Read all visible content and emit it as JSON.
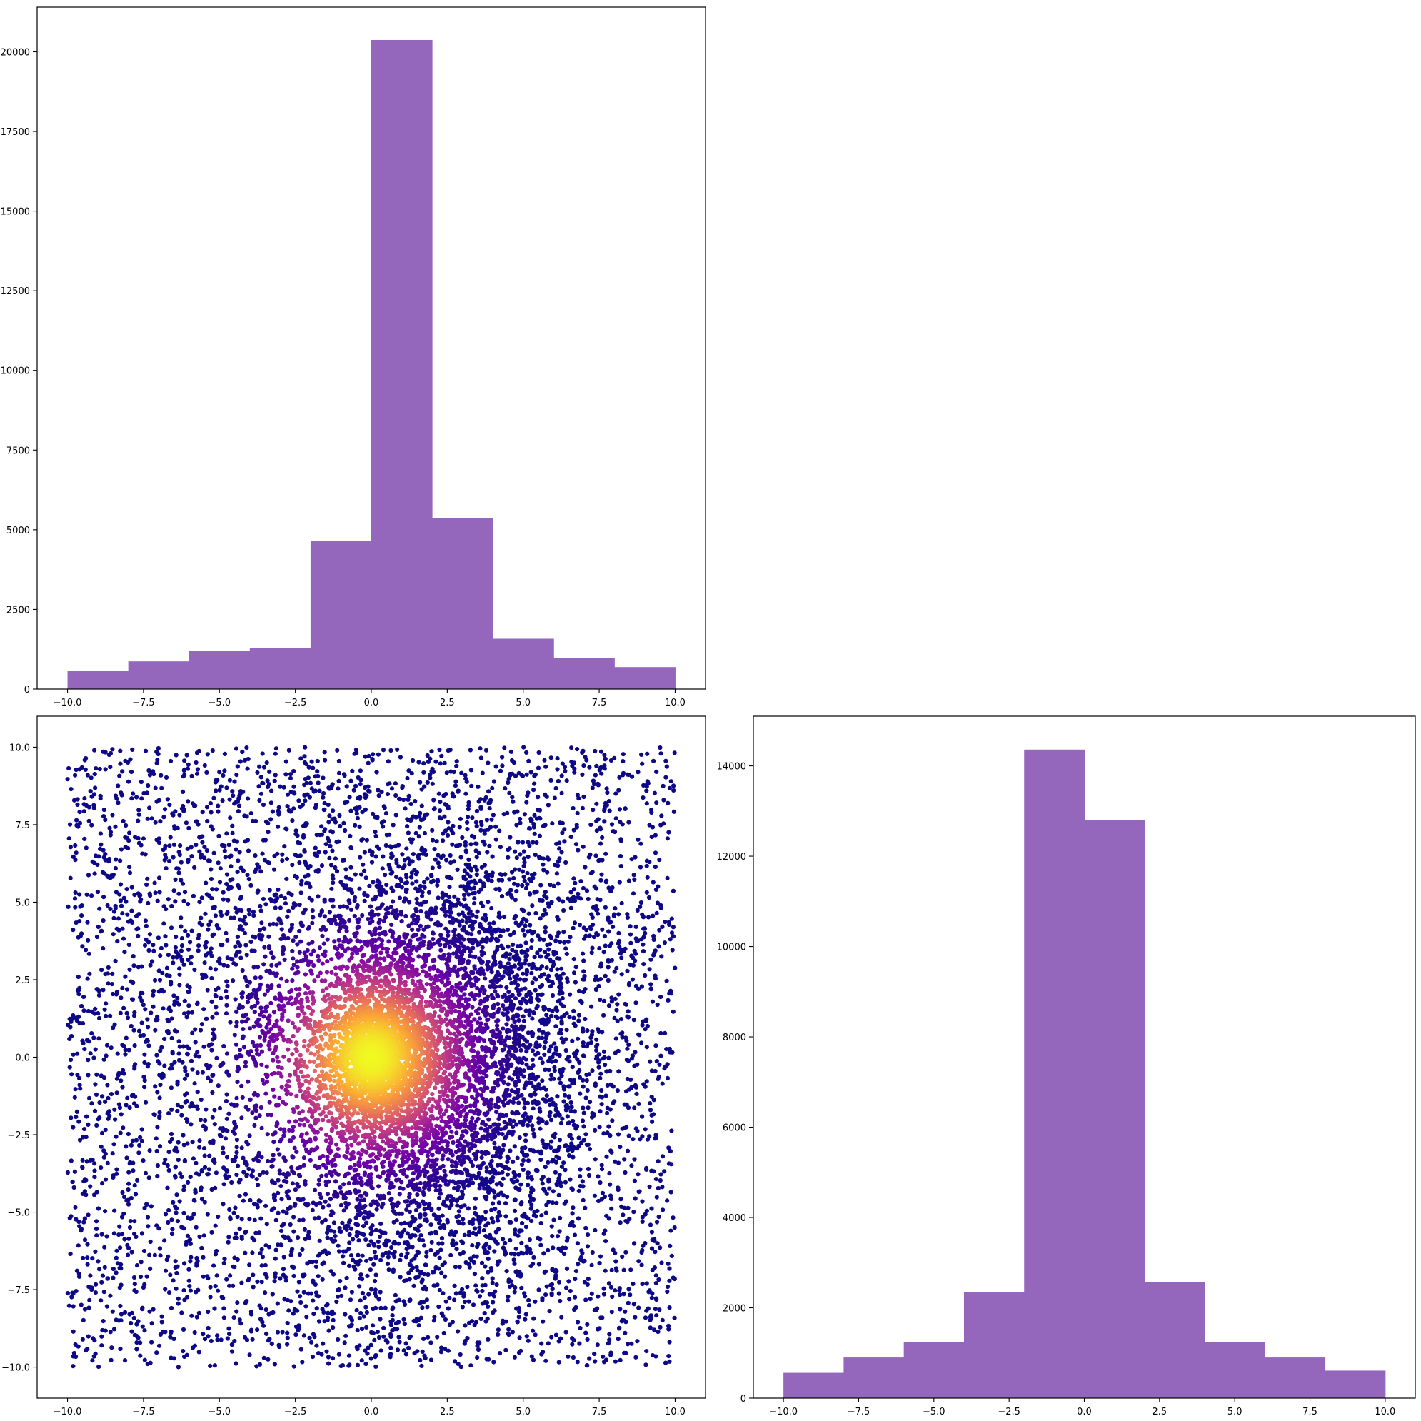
{
  "chart_data": [
    {
      "type": "bar",
      "panel": "top-left",
      "series_color": "#9467bd",
      "bin_edges": [
        -10,
        -8,
        -6,
        -4,
        -2,
        0,
        2,
        4,
        6,
        8,
        10
      ],
      "values": [
        560,
        870,
        1190,
        1290,
        4660,
        20370,
        5370,
        1580,
        970,
        690
      ],
      "xlim": [
        -11,
        11
      ],
      "ylim": [
        0,
        21400
      ],
      "x_ticks": [
        -10,
        -7.5,
        -5,
        -2.5,
        0,
        2.5,
        5,
        7.5,
        10
      ],
      "x_tick_labels": [
        "−10.0",
        "−7.5",
        "−5.0",
        "−2.5",
        "0.0",
        "2.5",
        "5.0",
        "7.5",
        "10.0"
      ],
      "y_ticks": [
        0,
        2500,
        5000,
        7500,
        10000,
        12500,
        15000,
        17500,
        20000
      ],
      "y_tick_labels": [
        "0",
        "2500",
        "5000",
        "7500",
        "10000",
        "12500",
        "15000",
        "17500",
        "20000"
      ],
      "grid": false
    },
    {
      "type": "scatter",
      "panel": "bottom-left",
      "colormap": [
        "#0d0887",
        "#6a00a8",
        "#b12a90",
        "#e16462",
        "#fca636",
        "#f0f921"
      ],
      "point_count_approx": 9000,
      "x_range": [
        -10,
        10
      ],
      "y_range": [
        -10,
        10
      ],
      "dense_center": [
        0,
        0
      ],
      "xlim": [
        -11,
        11
      ],
      "ylim": [
        -11,
        11
      ],
      "x_ticks": [
        -10,
        -7.5,
        -5,
        -2.5,
        0,
        2.5,
        5,
        7.5,
        10
      ],
      "x_tick_labels": [
        "−10.0",
        "−7.5",
        "−5.0",
        "−2.5",
        "0.0",
        "2.5",
        "5.0",
        "7.5",
        "10.0"
      ],
      "y_ticks": [
        -10,
        -7.5,
        -5,
        -2.5,
        0,
        2.5,
        5,
        7.5,
        10
      ],
      "y_tick_labels": [
        "−10.0",
        "−7.5",
        "−5.0",
        "−2.5",
        "0.0",
        "2.5",
        "5.0",
        "7.5",
        "10.0"
      ],
      "grid": false
    },
    {
      "type": "bar",
      "panel": "bottom-right",
      "series_color": "#9467bd",
      "bin_edges": [
        -10,
        -8,
        -6,
        -4,
        -2,
        0,
        2,
        4,
        6,
        8,
        10
      ],
      "values": [
        560,
        900,
        1240,
        2340,
        14360,
        12800,
        2570,
        1240,
        900,
        610
      ],
      "xlim": [
        -11,
        11
      ],
      "ylim": [
        0,
        15100
      ],
      "x_ticks": [
        -10,
        -7.5,
        -5,
        -2.5,
        0,
        2.5,
        5,
        7.5,
        10
      ],
      "x_tick_labels": [
        "−10.0",
        "−7.5",
        "−5.0",
        "−2.5",
        "0.0",
        "2.5",
        "5.0",
        "7.5",
        "10.0"
      ],
      "y_ticks": [
        0,
        2000,
        4000,
        6000,
        8000,
        10000,
        12000,
        14000
      ],
      "y_tick_labels": [
        "0",
        "2000",
        "4000",
        "6000",
        "8000",
        "10000",
        "12000",
        "14000"
      ],
      "grid": false
    }
  ]
}
